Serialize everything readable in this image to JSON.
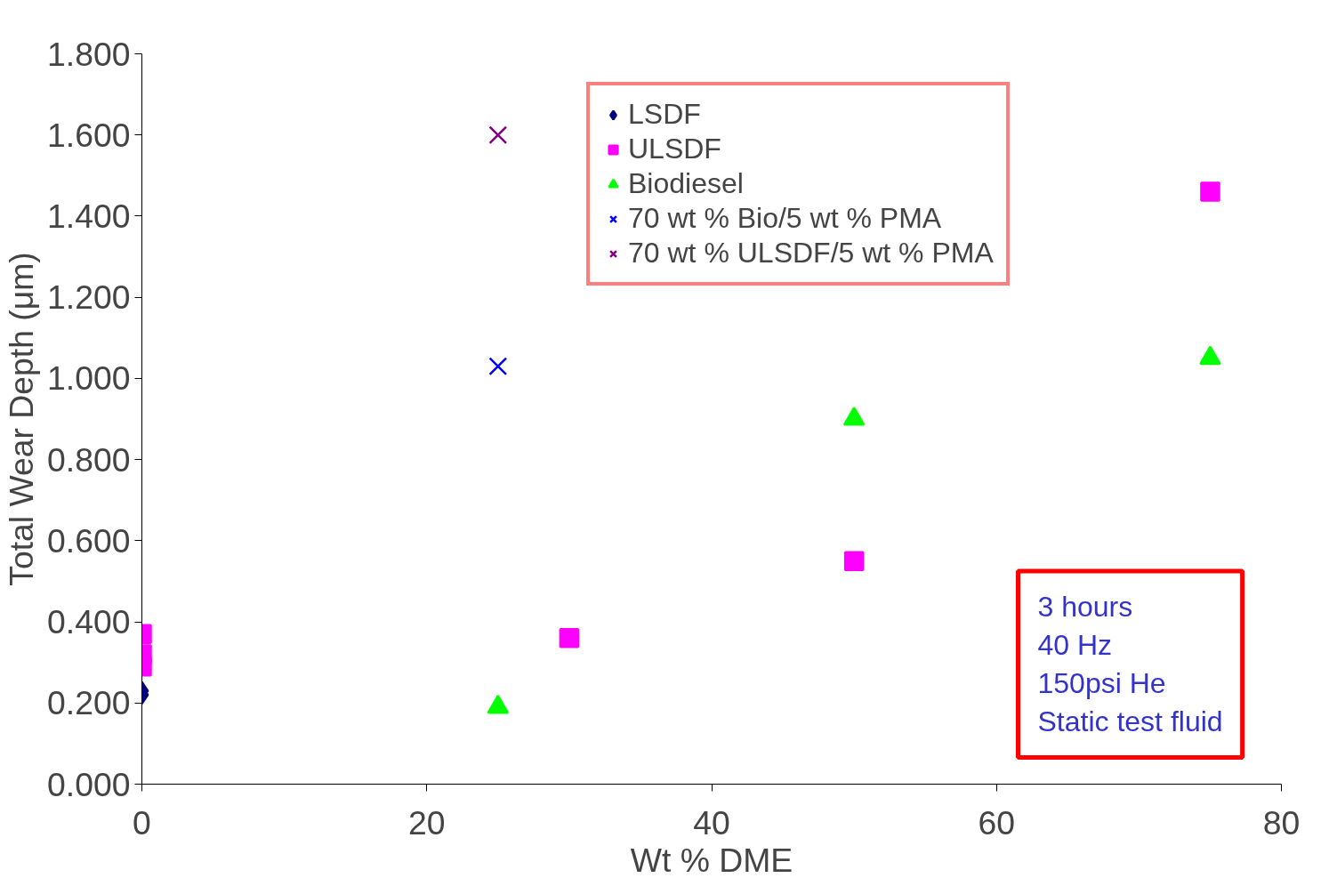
{
  "chart_data": {
    "type": "scatter",
    "xlabel": "Wt % DME",
    "ylabel": "Total Wear Depth (μm)",
    "xlim": [
      0,
      80
    ],
    "xticks": [
      0,
      20,
      40,
      60,
      80
    ],
    "ylim": [
      0,
      1.8
    ],
    "yticks": [
      {
        "value": 0,
        "label": "0.000"
      },
      {
        "value": 0.2,
        "label": "0.200"
      },
      {
        "value": 0.4,
        "label": "0.400"
      },
      {
        "value": 0.6,
        "label": "0.600"
      },
      {
        "value": 0.8,
        "label": "0.800"
      },
      {
        "value": 1.0,
        "label": "1.000"
      },
      {
        "value": 1.2,
        "label": "1.200"
      },
      {
        "value": 1.4,
        "label": "1.400"
      },
      {
        "value": 1.6,
        "label": "1.600"
      },
      {
        "value": 1.8,
        "label": "1.800"
      }
    ],
    "grid": false,
    "legend": "top",
    "series": [
      {
        "name": "LSDF",
        "color": "#000080",
        "marker": "diamond",
        "x": [
          0,
          0
        ],
        "values": [
          0.23,
          0.22
        ]
      },
      {
        "name": "ULSDF",
        "color": "#ff00ff",
        "marker": "square",
        "x": [
          0,
          0,
          0,
          30,
          50,
          75
        ],
        "values": [
          0.37,
          0.32,
          0.29,
          0.36,
          0.55,
          1.46
        ]
      },
      {
        "name": "Biodiesel",
        "color": "#00ff00",
        "marker": "triangle",
        "x": [
          25,
          50,
          75
        ],
        "values": [
          0.19,
          0.9,
          1.05
        ]
      },
      {
        "name": "70 wt % Bio/5 wt % PMA",
        "color": "#0000ff",
        "marker": "cross",
        "x": [
          25
        ],
        "values": [
          1.03
        ]
      },
      {
        "name": "70 wt % ULSDF/5 wt % PMA",
        "color": "#800080",
        "marker": "cross",
        "x": [
          25
        ],
        "values": [
          1.6
        ]
      }
    ],
    "annotations": [
      "3 hours",
      "40 Hz",
      "150psi He",
      "Static test fluid"
    ]
  }
}
